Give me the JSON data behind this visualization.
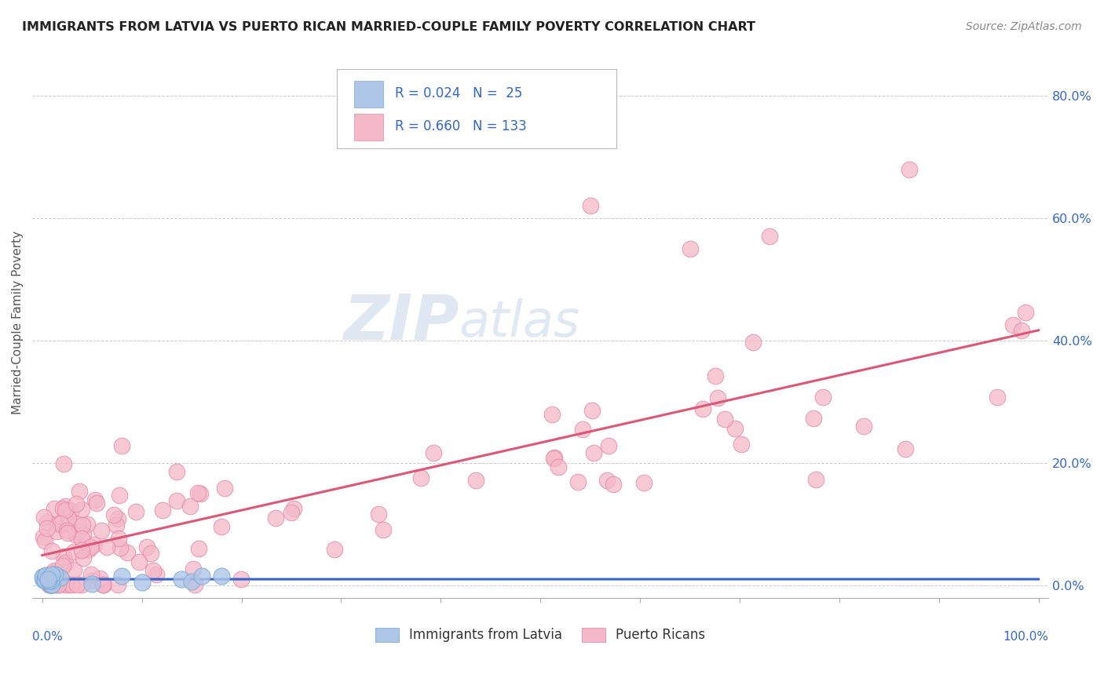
{
  "title": "IMMIGRANTS FROM LATVIA VS PUERTO RICAN MARRIED-COUPLE FAMILY POVERTY CORRELATION CHART",
  "source": "Source: ZipAtlas.com",
  "ylabel": "Married-Couple Family Poverty",
  "ytick_vals": [
    0.0,
    0.2,
    0.4,
    0.6,
    0.8
  ],
  "ytick_labels": [
    "0.0%",
    "20.0%",
    "40.0%",
    "60.0%",
    "80.0%"
  ],
  "xlim": [
    -0.01,
    1.01
  ],
  "ylim": [
    -0.02,
    0.88
  ],
  "legend_entries": [
    {
      "label": "Immigrants from Latvia",
      "R": "0.024",
      "N": "25",
      "color": "#aec6e8"
    },
    {
      "label": "Puerto Ricans",
      "R": "0.660",
      "N": "133",
      "color": "#f4b8c8"
    }
  ],
  "latvia_face": "#aec6e8",
  "latvia_edge": "#7aaad4",
  "pr_face": "#f4b8c8",
  "pr_edge": "#e888a8",
  "reg_latvia_color": "#3366cc",
  "reg_pr_color": "#e05575",
  "watermark_zip_color": "#c5d5e8",
  "watermark_atlas_color": "#c5d5e8",
  "background_color": "#ffffff",
  "grid_color": "#cccccc",
  "title_color": "#222222",
  "ytick_color": "#3366cc",
  "source_color": "#888888",
  "legend_text_color": "#3366cc",
  "legend_label_color": "#333333",
  "figsize": [
    14.06,
    8.92
  ],
  "dpi": 100
}
